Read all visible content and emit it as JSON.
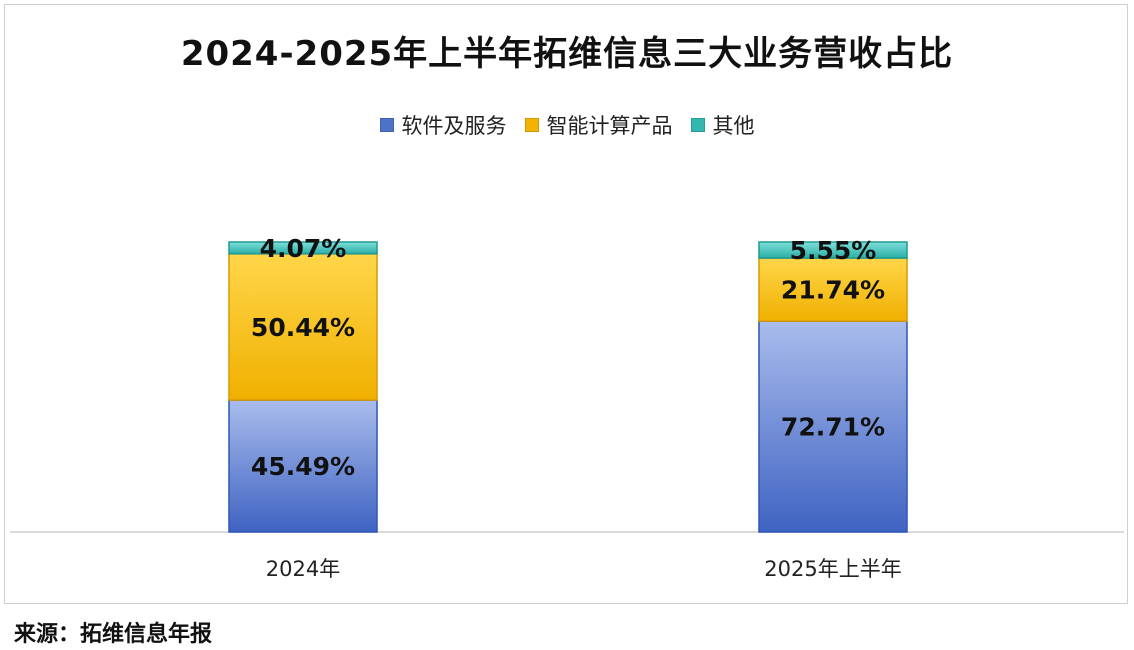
{
  "title": "2024-2025年上半年拓维信息三大业务营收占比",
  "source": "来源：拓维信息年报",
  "chart_data": {
    "type": "bar",
    "stacked": true,
    "title": "2024-2025年上半年拓维信息三大业务营收占比",
    "xlabel": "",
    "ylabel": "",
    "ylim": [
      0,
      100
    ],
    "grid": false,
    "legend_position": "top-center",
    "categories": [
      "2024年",
      "2025年上半年"
    ],
    "series": [
      {
        "name": "软件及服务",
        "values": [
          45.49,
          72.71
        ],
        "labels": [
          "45.49%",
          "72.71%"
        ],
        "color": "#4f72c9"
      },
      {
        "name": "智能计算产品",
        "values": [
          50.44,
          21.74
        ],
        "labels": [
          "50.44%",
          "21.74%"
        ],
        "color": "#f2b400"
      },
      {
        "name": "其他",
        "values": [
          4.07,
          5.55
        ],
        "labels": [
          "4.07%",
          "5.55%"
        ],
        "color": "#33b8b0"
      }
    ]
  }
}
